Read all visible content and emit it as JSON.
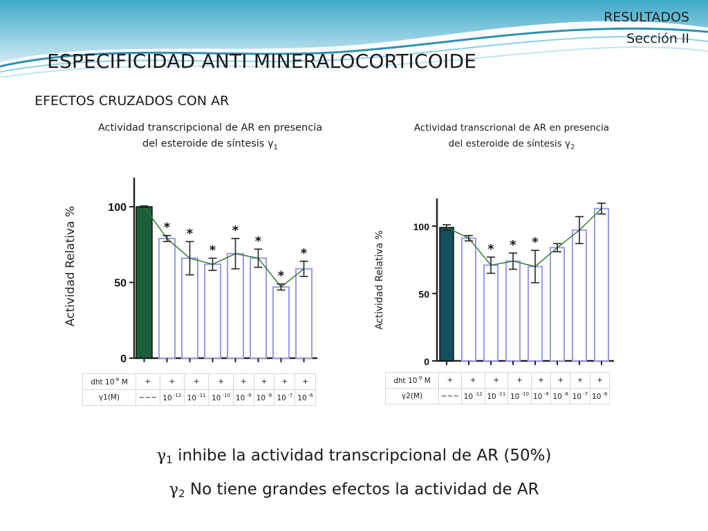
{
  "header": {
    "section": "RESULTADOS",
    "subsection": "Sección II"
  },
  "title": "ESPECIFICIDAD ANTI MINERALOCORTICOIDE",
  "subtitle": "EFECTOS CRUZADOS CON AR",
  "chart_data": [
    {
      "type": "bar",
      "title_line1": "Actividad transcripcional de AR en presencia",
      "title_line2": "del esteroide de síntesis γ",
      "title_sub": "1",
      "ylabel": "Actividad Relativa %",
      "ylim": [
        0,
        120
      ],
      "yticks": [
        "0",
        "50",
        "100"
      ],
      "categories": [
        "control",
        "10-12",
        "10-11",
        "10-10",
        "10-9",
        "10-8",
        "10-7",
        "10-6"
      ],
      "values": [
        100,
        79,
        66,
        62,
        69,
        66,
        47,
        59
      ],
      "errors": [
        0.5,
        2,
        11,
        4,
        10,
        6,
        2,
        5
      ],
      "significant": [
        false,
        true,
        true,
        true,
        true,
        true,
        true,
        true
      ],
      "control_color": "#1b5e3a",
      "bar_stroke": "#9a9ae8",
      "line_color": "#2e7d32",
      "marker": "*",
      "table": {
        "row1_label": "dht 10",
        "row1_exp": "-8",
        "row1_unit": " M",
        "row1_values": [
          "+",
          "+",
          "+",
          "+",
          "+",
          "+",
          "+",
          "+"
        ],
        "row2_label": "γ1(M)",
        "row2_first": "~~~",
        "row2_values": [
          {
            "base": "10",
            "exp": "-12"
          },
          {
            "base": "10",
            "exp": "-11"
          },
          {
            "base": "10",
            "exp": "-10"
          },
          {
            "base": "10",
            "exp": "-9"
          },
          {
            "base": "10",
            "exp": "-8"
          },
          {
            "base": "10",
            "exp": "-7"
          },
          {
            "base": "10",
            "exp": "-6"
          }
        ]
      }
    },
    {
      "type": "bar",
      "title_line1": "Actividad transcrional de AR en presencia",
      "title_line2": "del esteroide de síntesis γ",
      "title_sub": "2",
      "ylabel": "Actividad Relativa %",
      "ylim": [
        0,
        120
      ],
      "yticks": [
        "0",
        "50",
        "100"
      ],
      "categories": [
        "control",
        "10-12",
        "10-11",
        "10-10",
        "10-9",
        "10-8",
        "10-7",
        "10-6"
      ],
      "values": [
        99,
        91,
        71,
        74,
        70,
        84,
        97,
        113
      ],
      "errors": [
        2,
        2,
        6,
        6,
        12,
        3,
        10,
        4
      ],
      "significant": [
        false,
        false,
        true,
        true,
        true,
        false,
        false,
        false
      ],
      "control_color": "#144f5c",
      "bar_stroke": "#9a9ae8",
      "line_color": "#2e7d32",
      "marker": "*",
      "table": {
        "row1_label": "dht 10",
        "row1_exp": "-9",
        "row1_unit": " M",
        "row1_values": [
          "+",
          "+",
          "+",
          "+",
          "+",
          "+",
          "+",
          "+"
        ],
        "row2_label": "γ2(M)",
        "row2_first": "~~~",
        "row2_values": [
          {
            "base": "10",
            "exp": "-12"
          },
          {
            "base": "10",
            "exp": "-11"
          },
          {
            "base": "10",
            "exp": "-10"
          },
          {
            "base": "10",
            "exp": "-9"
          },
          {
            "base": "10",
            "exp": "-8"
          },
          {
            "base": "10",
            "exp": "-7"
          },
          {
            "base": "10",
            "exp": "-6"
          }
        ]
      }
    }
  ],
  "conclusions": [
    {
      "symbol": "γ",
      "sub": "1",
      "text": " inhibe  la actividad transcripcional de AR (50%)"
    },
    {
      "symbol": "γ",
      "sub": "2",
      "text": " No tiene grandes efectos  la actividad  de AR"
    }
  ]
}
